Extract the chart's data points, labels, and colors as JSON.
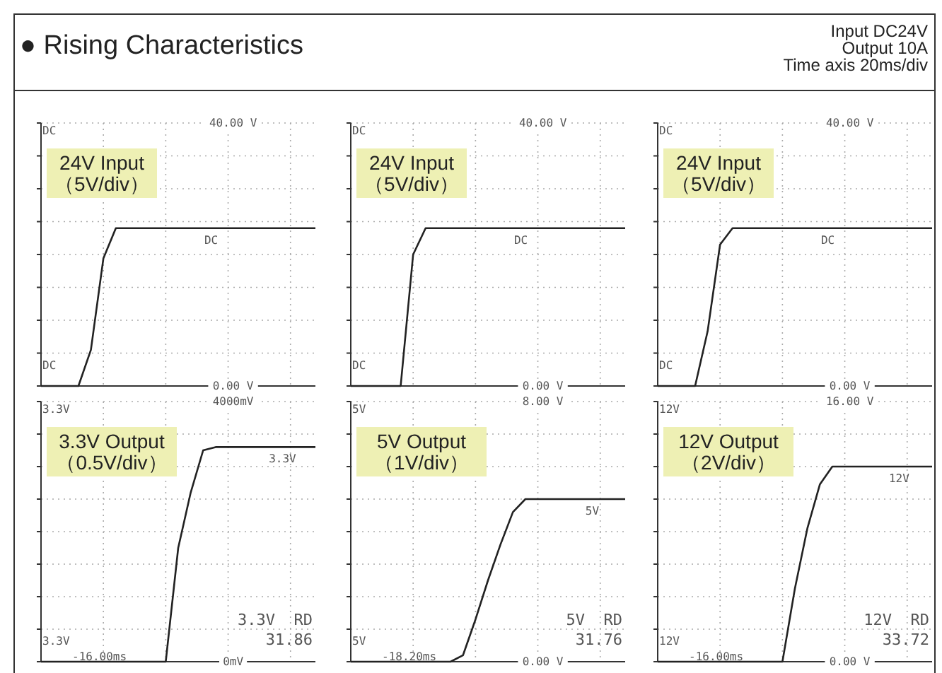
{
  "chart_data": [
    {
      "type": "line",
      "title": "● Rising Characteristics",
      "categories": [
        null,
        null,
        null,
        null,
        null,
        null,
        null,
        null,
        null,
        null,
        null,
        null,
        null,
        null,
        null,
        null,
        null,
        null,
        null,
        null,
        null,
        null,
        null
      ],
      "series": [
        {
          "color": "#222222",
          "values": [
            0,
            0,
            0,
            0,
            5.5,
            19.4,
            24,
            24,
            24,
            24,
            24,
            24,
            24,
            24,
            24,
            24,
            24,
            24,
            24,
            24,
            24,
            24,
            24
          ]
        }
      ],
      "ylim": [
        0,
        40
      ],
      "yticks": [
        {
          "value": 0,
          "label": "0.00 V"
        },
        {
          "value": 5,
          "label": null
        },
        {
          "value": 10,
          "label": null
        },
        {
          "value": 15,
          "label": null
        },
        {
          "value": 20,
          "label": null
        },
        {
          "value": 25,
          "label": null
        },
        {
          "value": 30,
          "label": null
        },
        {
          "value": 35,
          "label": null
        },
        {
          "value": 40,
          "label": "40.00 V"
        }
      ],
      "grid": true,
      "annotations": [
        "24V Input\n（5V/div）",
        "DC",
        "DC",
        "DC"
      ]
    },
    {
      "type": "line",
      "categories": [
        null,
        null,
        null,
        null,
        null,
        null,
        null,
        null,
        null,
        null,
        null,
        null,
        null,
        null,
        null,
        null,
        null,
        null,
        null,
        null,
        null,
        null,
        null
      ],
      "series": [
        {
          "color": "#222222",
          "values": [
            0,
            0,
            0,
            0,
            0,
            20,
            24,
            24,
            24,
            24,
            24,
            24,
            24,
            24,
            24,
            24,
            24,
            24,
            24,
            24,
            24,
            24,
            24
          ]
        }
      ],
      "ylim": [
        0,
        40
      ],
      "yticks": [
        {
          "value": 0,
          "label": "0.00 V"
        },
        {
          "value": 5,
          "label": null
        },
        {
          "value": 10,
          "label": null
        },
        {
          "value": 15,
          "label": null
        },
        {
          "value": 20,
          "label": null
        },
        {
          "value": 25,
          "label": null
        },
        {
          "value": 30,
          "label": null
        },
        {
          "value": 35,
          "label": null
        },
        {
          "value": 40,
          "label": "40.00 V"
        }
      ],
      "grid": true,
      "annotations": [
        "24V Input\n（5V/div）",
        "DC",
        "DC",
        "DC"
      ]
    },
    {
      "type": "line",
      "subtitle": "Input DC24V\nOutput 10A\nTime axis 20ms/div",
      "categories": [
        null,
        null,
        null,
        null,
        null,
        null,
        null,
        null,
        null,
        null,
        null,
        null,
        null,
        null,
        null,
        null,
        null,
        null,
        null,
        null,
        null,
        null,
        null
      ],
      "series": [
        {
          "color": "#222222",
          "values": [
            0,
            0,
            0,
            0,
            8.3,
            21.5,
            24,
            24,
            24,
            24,
            24,
            24,
            24,
            24,
            24,
            24,
            24,
            24,
            24,
            24,
            24,
            24,
            24
          ]
        }
      ],
      "ylim": [
        0,
        40
      ],
      "yticks": [
        {
          "value": 0,
          "label": "0.00 V"
        },
        {
          "value": 5,
          "label": null
        },
        {
          "value": 10,
          "label": null
        },
        {
          "value": 15,
          "label": null
        },
        {
          "value": 20,
          "label": null
        },
        {
          "value": 25,
          "label": null
        },
        {
          "value": 30,
          "label": null
        },
        {
          "value": 35,
          "label": null
        },
        {
          "value": 40,
          "label": "40.00 V"
        }
      ],
      "grid": true,
      "annotations": [
        "24V Input\n（5V/div）",
        "DC",
        "DC",
        "DC"
      ]
    },
    {
      "type": "line",
      "categories": [
        null,
        null,
        null,
        null,
        null,
        null,
        null,
        null,
        null,
        null,
        null,
        null,
        null,
        null,
        null,
        null,
        null,
        null,
        null,
        null,
        null,
        null,
        null
      ],
      "series": [
        {
          "color": "#222222",
          "values": [
            0,
            0,
            0,
            0,
            0,
            0,
            0,
            0,
            0,
            0,
            0,
            1750,
            2600,
            3250,
            3300,
            3300,
            3300,
            3300,
            3300,
            3300,
            3300,
            3300,
            3300
          ]
        }
      ],
      "ylim": [
        0,
        4000
      ],
      "yticks": [
        {
          "value": 0,
          "label": "0mV"
        },
        {
          "value": 500,
          "label": null
        },
        {
          "value": 1000,
          "label": null
        },
        {
          "value": 1500,
          "label": null
        },
        {
          "value": 2000,
          "label": null
        },
        {
          "value": 2500,
          "label": null
        },
        {
          "value": 3000,
          "label": null
        },
        {
          "value": 3500,
          "label": null
        },
        {
          "value": 4000,
          "label": "4000mV"
        }
      ],
      "grid": true,
      "annotations": [
        "3.3V Output\n（0.5V/div）",
        "3.3V",
        "3.3V",
        "3.3V",
        "3.3V  RD",
        "31.86",
        "-16.00ms"
      ]
    },
    {
      "type": "line",
      "categories": [
        null,
        null,
        null,
        null,
        null,
        null,
        null,
        null,
        null,
        null,
        null,
        null,
        null,
        null,
        null,
        null,
        null,
        null,
        null,
        null,
        null,
        null,
        null
      ],
      "series": [
        {
          "color": "#222222",
          "values": [
            0,
            0,
            0,
            0,
            0,
            0,
            0,
            0,
            0,
            0.2,
            1.3,
            2.5,
            3.6,
            4.6,
            5,
            5,
            5,
            5,
            5,
            5,
            5,
            5,
            5
          ]
        }
      ],
      "ylim": [
        0,
        8
      ],
      "yticks": [
        {
          "value": 0,
          "label": "0.00 V"
        },
        {
          "value": 1,
          "label": null
        },
        {
          "value": 2,
          "label": null
        },
        {
          "value": 3,
          "label": null
        },
        {
          "value": 4,
          "label": null
        },
        {
          "value": 5,
          "label": null
        },
        {
          "value": 6,
          "label": null
        },
        {
          "value": 7,
          "label": null
        },
        {
          "value": 8,
          "label": "8.00 V"
        }
      ],
      "grid": true,
      "annotations": [
        "5V Output\n（1V/div）",
        "5V",
        "5V",
        "5V",
        "5V  RD",
        "31.76",
        "-18.20ms"
      ]
    },
    {
      "type": "line",
      "categories": [
        null,
        null,
        null,
        null,
        null,
        null,
        null,
        null,
        null,
        null,
        null,
        null,
        null,
        null,
        null,
        null,
        null,
        null,
        null,
        null,
        null,
        null,
        null
      ],
      "series": [
        {
          "color": "#222222",
          "values": [
            0,
            0,
            0,
            0,
            0,
            0,
            0,
            0,
            0,
            0,
            0,
            4.5,
            8.2,
            10.9,
            12,
            12,
            12,
            12,
            12,
            12,
            12,
            12,
            12
          ]
        }
      ],
      "ylim": [
        0,
        16
      ],
      "yticks": [
        {
          "value": 0,
          "label": "0.00 V"
        },
        {
          "value": 2,
          "label": null
        },
        {
          "value": 4,
          "label": null
        },
        {
          "value": 6,
          "label": null
        },
        {
          "value": 8,
          "label": null
        },
        {
          "value": 10,
          "label": null
        },
        {
          "value": 12,
          "label": null
        },
        {
          "value": 14,
          "label": null
        },
        {
          "value": 16,
          "label": "16.00 V"
        }
      ],
      "grid": true,
      "annotations": [
        "12V Output\n（2V/div）",
        "12V",
        "12V",
        "12V",
        "12V  RD",
        "33.72",
        "-16.00ms"
      ]
    }
  ]
}
